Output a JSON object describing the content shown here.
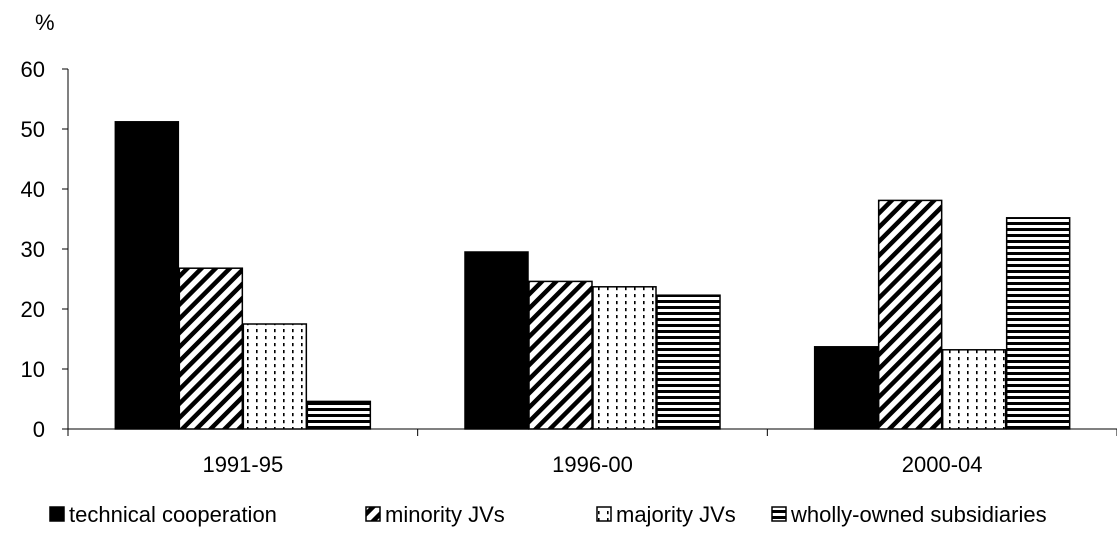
{
  "chart_data": {
    "type": "bar",
    "title": "",
    "ylabel": "%",
    "xlabel": "",
    "ylim": [
      0,
      60
    ],
    "yticks": [
      0,
      10,
      20,
      30,
      40,
      50,
      60
    ],
    "grid": false,
    "legend_position": "bottom",
    "categories": [
      "1991-95",
      "1996-00",
      "2000-04"
    ],
    "series": [
      {
        "name": "technical cooperation",
        "pattern": "solid",
        "color": "#000000",
        "values": [
          51.2,
          29.5,
          13.7
        ]
      },
      {
        "name": "minority JVs",
        "pattern": "diagonal",
        "color": "#000000",
        "values": [
          26.8,
          24.6,
          38.1
        ]
      },
      {
        "name": "majority JVs",
        "pattern": "dotted",
        "color": "#000000",
        "values": [
          17.5,
          23.7,
          13.2
        ]
      },
      {
        "name": "wholly-owned subsidiaries",
        "pattern": "horizontal",
        "color": "#000000",
        "values": [
          4.6,
          22.3,
          35.2
        ]
      }
    ]
  }
}
